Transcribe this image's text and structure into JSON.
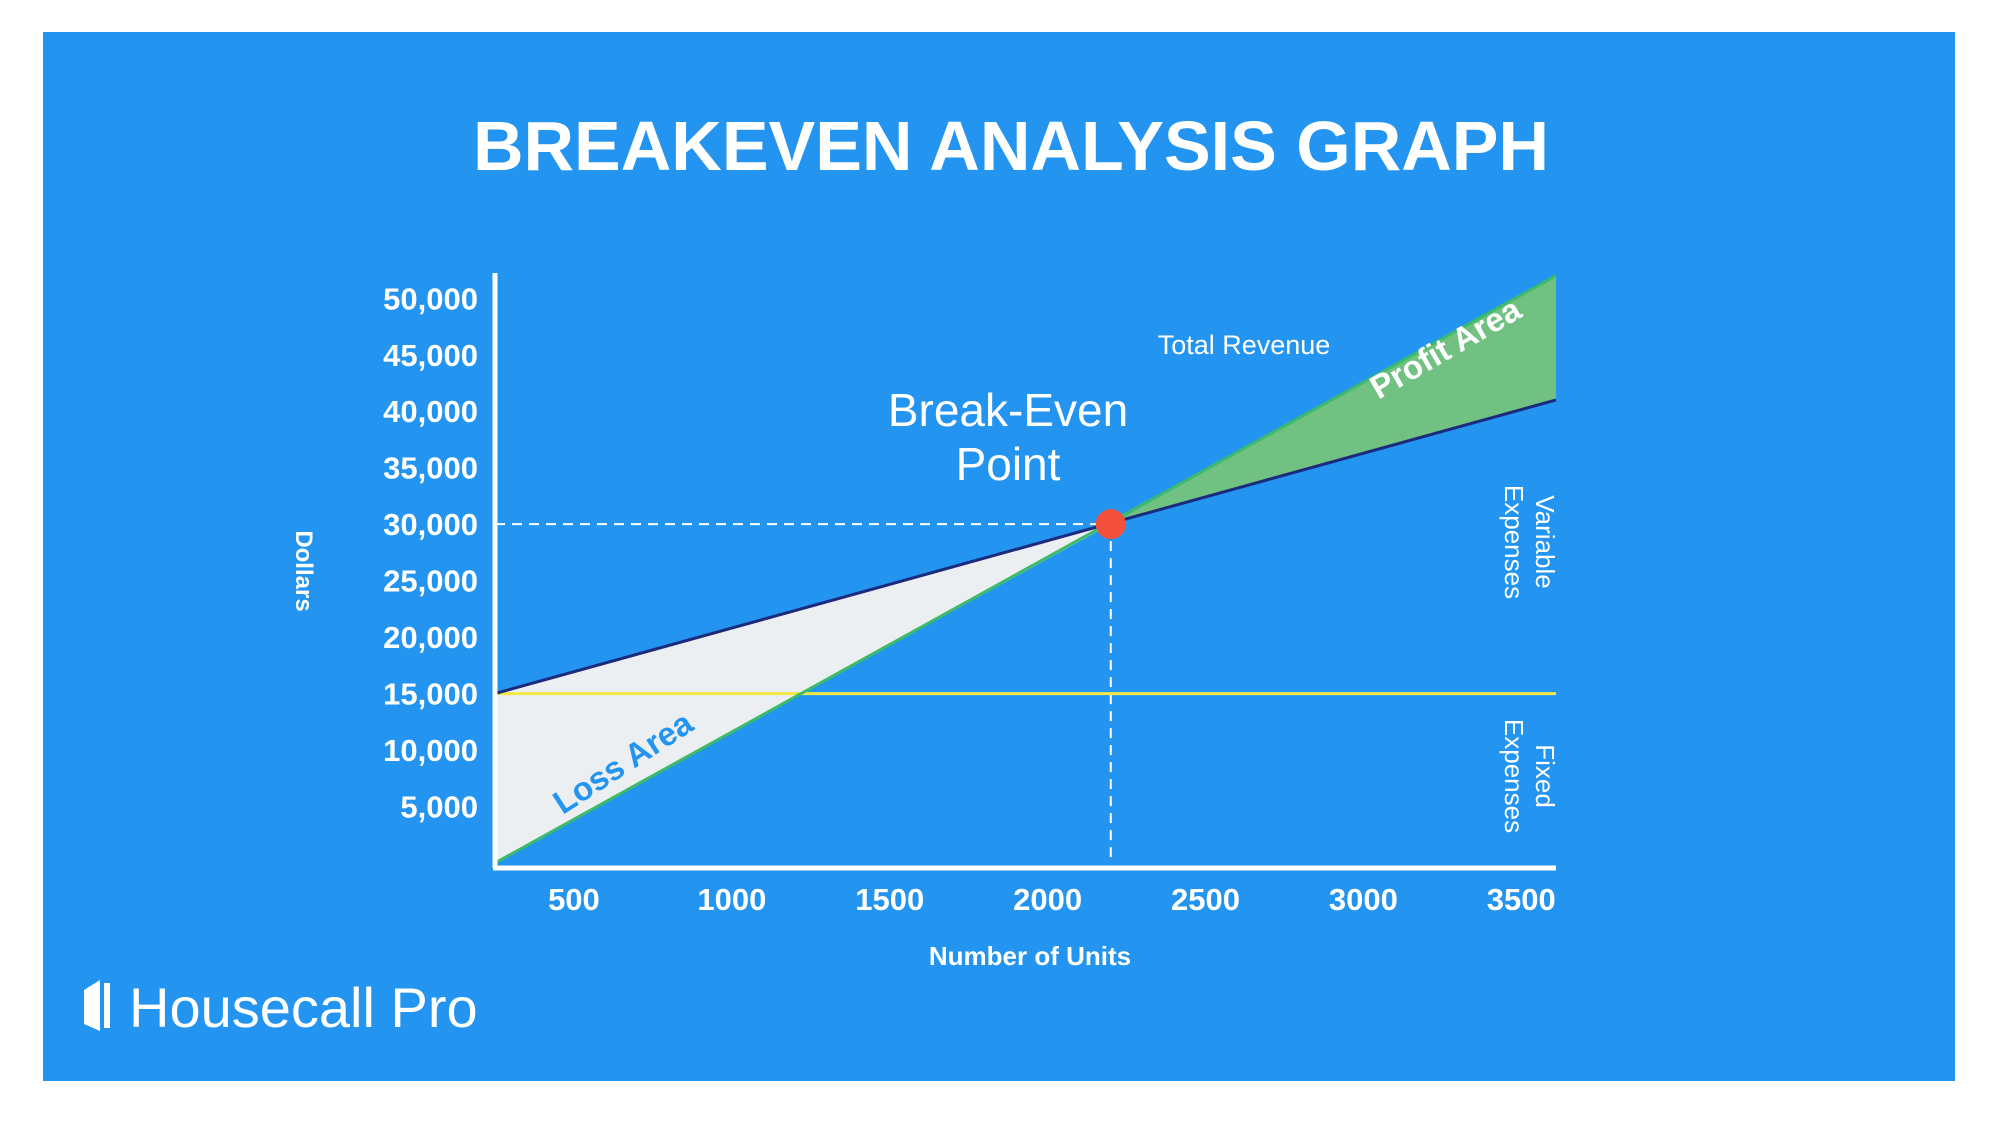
{
  "chart_data": {
    "type": "line",
    "title": "BREAKEVEN ANALYSIS GRAPH",
    "x_label": "Number of Units",
    "y_label": "Dollars",
    "background": "#2394f0",
    "x": [
      250,
      3610
    ],
    "series": [
      {
        "name": "Total Revenue",
        "color": "#3dbb6b",
        "values": [
          0,
          52000
        ]
      },
      {
        "label": [
          "Variable",
          "Expenses"
        ],
        "color": "#1b2a7c",
        "values": [
          15000,
          41000
        ]
      },
      {
        "label": [
          "Fixed",
          "Expenses"
        ],
        "color": "#f2e845",
        "values": [
          15000,
          15000
        ]
      }
    ],
    "break_even": {
      "x": 2200,
      "y": 30000,
      "label": [
        "Break-Even",
        "Point"
      ],
      "color": "#f4503b"
    },
    "areas": [
      {
        "name": "Loss Area",
        "color": "#eceff1"
      },
      {
        "name": "Profit Area",
        "color": "#71c282"
      }
    ],
    "xlim": [
      250,
      3610
    ],
    "ylim": [
      0,
      51000
    ],
    "xticks": [
      500,
      1000,
      1500,
      2000,
      2500,
      3000,
      3500
    ],
    "yticks": [
      {
        "value": 5000,
        "label": "5,000"
      },
      {
        "value": 10000,
        "label": "10,000"
      },
      {
        "value": 15000,
        "label": "15,000"
      },
      {
        "value": 20000,
        "label": "20,000"
      },
      {
        "value": 25000,
        "label": "25,000"
      },
      {
        "value": 30000,
        "label": "30,000"
      },
      {
        "value": 35000,
        "label": "35,000"
      },
      {
        "value": 40000,
        "label": "40,000"
      },
      {
        "value": 45000,
        "label": "45,000"
      },
      {
        "value": 50000,
        "label": "50,000"
      }
    ],
    "brand": "Housecall Pro"
  }
}
